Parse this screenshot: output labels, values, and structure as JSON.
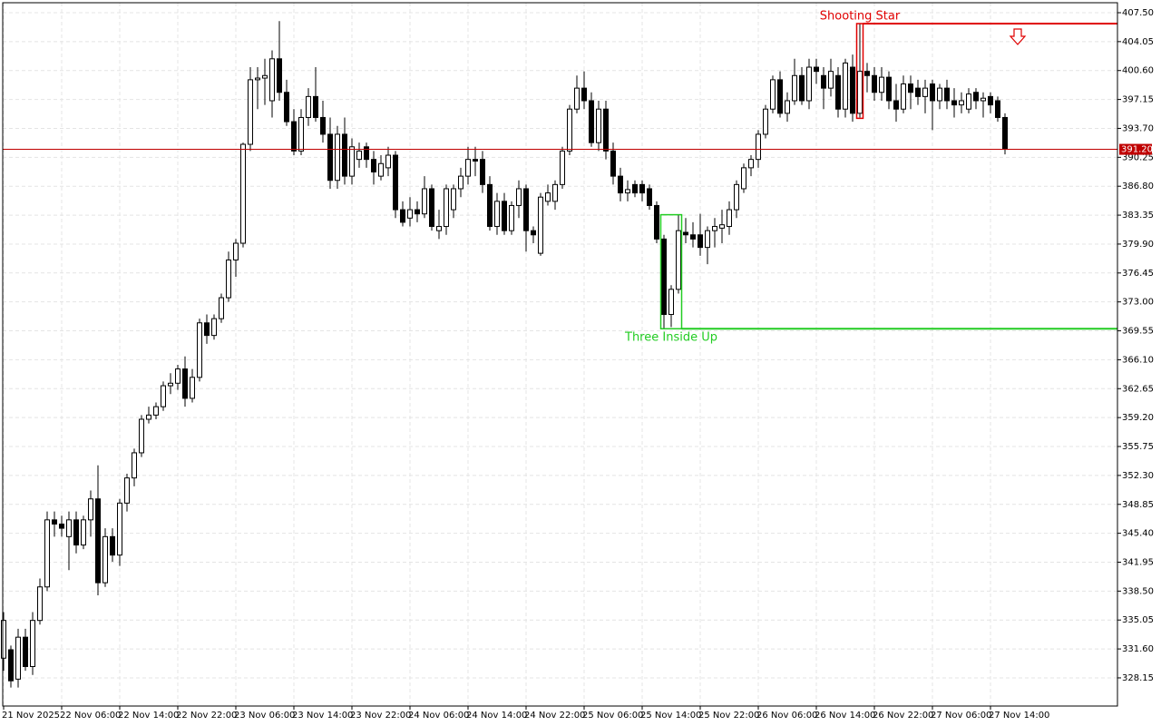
{
  "chart_data": {
    "type": "candlestick",
    "categories": [
      "21 Nov 2025",
      null,
      null,
      null,
      null,
      null,
      null,
      null,
      "22 Nov 06:00",
      null,
      null,
      null,
      null,
      null,
      null,
      null,
      "22 Nov 14:00",
      null,
      null,
      null,
      null,
      null,
      null,
      null,
      "22 Nov 22:00",
      null,
      null,
      null,
      null,
      null,
      null,
      null,
      "23 Nov 06:00",
      null,
      null,
      null,
      null,
      null,
      null,
      null,
      "23 Nov 14:00",
      null,
      null,
      null,
      null,
      null,
      null,
      null,
      "23 Nov 22:00",
      null,
      null,
      null,
      null,
      null,
      null,
      null,
      "24 Nov 06:00",
      null,
      null,
      null,
      null,
      null,
      null,
      null,
      "24 Nov 14:00",
      null,
      null,
      null,
      null,
      null,
      null,
      null,
      "24 Nov 22:00",
      null,
      null,
      null,
      null,
      null,
      null,
      null,
      "25 Nov 06:00",
      null,
      null,
      null,
      null,
      null,
      null,
      null,
      "25 Nov 14:00",
      null,
      null,
      null,
      null,
      null,
      null,
      null,
      "25 Nov 22:00",
      null,
      null,
      null,
      null,
      null,
      null,
      null,
      "26 Nov 06:00",
      null,
      null,
      null,
      null,
      null,
      null,
      null,
      "26 Nov 14:00",
      null,
      null,
      null,
      null,
      null,
      null,
      null,
      "26 Nov 22:00",
      null,
      null,
      null,
      null,
      null,
      null,
      null,
      "27 Nov 06:00",
      null,
      null,
      null,
      null,
      null,
      null,
      null,
      "27 Nov 14:00",
      null,
      null
    ],
    "open": [
      330.5,
      331.5,
      328,
      333,
      329.5,
      335,
      339,
      347,
      346.5,
      345,
      347,
      344,
      347,
      349.5,
      339.5,
      345,
      342.8,
      349,
      352,
      355,
      359,
      359.5,
      360.5,
      363,
      363.3,
      365,
      361.5,
      364,
      370.5,
      369,
      371,
      373.5,
      378,
      380,
      391.8,
      399.5,
      399.7,
      397,
      402,
      398,
      394.5,
      391,
      395,
      397.5,
      395,
      393,
      387.5,
      393,
      388,
      390,
      391.5,
      390,
      388,
      389,
      390.5,
      384,
      383,
      384,
      383.5,
      386.5,
      381.5,
      382,
      384,
      386.5,
      388,
      390,
      390,
      387,
      382,
      385,
      381.5,
      384.5,
      386.5,
      381.5,
      378.8,
      385,
      385,
      387,
      391,
      396,
      398.5,
      397,
      392,
      396,
      391,
      388,
      386,
      387,
      387,
      386.5,
      384.5,
      380.5,
      371.5,
      374.5,
      381.3,
      381,
      381,
      379.5,
      381.5,
      381.8,
      382,
      384,
      386.5,
      389,
      390,
      393,
      396,
      399.5,
      395.5,
      397,
      400,
      397,
      401,
      400,
      398.5,
      400,
      396,
      401,
      395.5,
      400.5,
      400,
      398,
      399.8,
      397,
      396,
      399,
      398.5,
      397.5,
      399,
      397,
      398.5,
      397,
      396.5,
      396,
      398,
      397,
      397.5,
      397,
      395
    ],
    "high": [
      336,
      332,
      334,
      334,
      336,
      340,
      348,
      348,
      347.5,
      348,
      348,
      347.5,
      350.5,
      353.5,
      346,
      346,
      349.5,
      352.5,
      355.5,
      359.5,
      360.5,
      361,
      363.5,
      364.5,
      365.5,
      366.5,
      365,
      371,
      371.5,
      371.5,
      374,
      379,
      380.5,
      392,
      401,
      401,
      402,
      403,
      406.5,
      399.5,
      396,
      396,
      398.5,
      401,
      397,
      395,
      394,
      395,
      392.5,
      392,
      392,
      391,
      390.5,
      391.5,
      391,
      385,
      385.5,
      385,
      388,
      387,
      384,
      387,
      387,
      389,
      391.5,
      391.5,
      391,
      388,
      386,
      386,
      385,
      387.5,
      387,
      382,
      386,
      387,
      387.5,
      391.5,
      396.5,
      400,
      400.5,
      398,
      397,
      397,
      392,
      389,
      387.5,
      387.5,
      387.5,
      387,
      385,
      381,
      375,
      383.4,
      383,
      382.5,
      383.5,
      382,
      383,
      384,
      385,
      387.5,
      389.5,
      390.5,
      393.5,
      396.5,
      400,
      400.5,
      398,
      402,
      401,
      402,
      402,
      401,
      402,
      401,
      402,
      402.5,
      406.2,
      401.5,
      401,
      401,
      400.5,
      399,
      400,
      400,
      399.5,
      399.5,
      399.5,
      399,
      399.5,
      398.5,
      398,
      398.5,
      398.5,
      398,
      398,
      397.5,
      395.5
    ],
    "low": [
      329,
      327,
      327,
      329,
      328.5,
      334.5,
      338.5,
      345,
      345,
      341,
      343,
      343.5,
      345,
      338,
      339,
      342,
      341.5,
      348,
      351,
      354.5,
      358.5,
      359,
      360,
      362,
      362.5,
      360.5,
      361,
      363.5,
      368,
      368.5,
      370.5,
      373,
      376,
      379.5,
      391,
      396,
      396.5,
      395,
      397,
      394,
      390.5,
      390.5,
      394,
      394.5,
      392,
      386.5,
      386.5,
      387,
      387,
      389,
      389,
      387,
      387.5,
      388,
      383,
      382,
      382,
      382.5,
      383,
      381.5,
      380.5,
      381,
      383,
      385.5,
      387,
      388,
      386,
      381.5,
      381,
      381,
      381,
      383,
      379,
      380,
      378.5,
      384.5,
      384,
      386.5,
      390.5,
      395.5,
      396,
      391.5,
      391,
      390,
      387,
      385,
      385,
      385.5,
      385,
      384,
      380,
      369.8,
      370,
      374,
      380,
      379.5,
      378.5,
      377.5,
      379.5,
      380,
      381,
      383,
      386,
      388,
      389,
      392.5,
      395.5,
      395,
      394.5,
      396.5,
      396.5,
      396,
      399,
      396,
      397.5,
      395,
      395,
      394.5,
      395,
      398,
      397,
      397,
      396,
      394.5,
      395.5,
      396,
      396.5,
      395.5,
      393.5,
      396,
      396,
      395,
      395.5,
      395.5,
      396,
      395,
      395.5,
      394.5,
      390.6
    ],
    "close": [
      335,
      327.8,
      333,
      329.5,
      335,
      339,
      347,
      346.5,
      346,
      347,
      344,
      347,
      349.5,
      339.5,
      345,
      342.8,
      349,
      352,
      355,
      359,
      359.5,
      360.5,
      363,
      363.3,
      365,
      361.5,
      364,
      370.5,
      369,
      371,
      373.5,
      378,
      380,
      391.8,
      399.5,
      399.7,
      400,
      402,
      398,
      394.5,
      391,
      395,
      397.5,
      395,
      393,
      387.5,
      393,
      388,
      391.5,
      391,
      390,
      388.5,
      389.5,
      390.5,
      384,
      382.5,
      384,
      383.5,
      386.5,
      382,
      382,
      386.5,
      386.5,
      388,
      390,
      389.8,
      387,
      382,
      385,
      381.5,
      384.5,
      386.5,
      381.5,
      381,
      385.5,
      386,
      387,
      391,
      396,
      398.5,
      397,
      392,
      396,
      391,
      388,
      386,
      386.4,
      386,
      386,
      384.5,
      380.5,
      371.5,
      374.5,
      381.5,
      381,
      380.5,
      379.5,
      381.5,
      382,
      382.2,
      384,
      387,
      389,
      390,
      393,
      396,
      399.5,
      395.5,
      397,
      400,
      397,
      401,
      400.5,
      398.5,
      400.5,
      396,
      401.5,
      395.5,
      400.5,
      400,
      398,
      399.8,
      397,
      396,
      399,
      398,
      397.5,
      398.5,
      397,
      398.5,
      397,
      396.5,
      397,
      397.8,
      397,
      397.3,
      396.5,
      395,
      391.2
    ],
    "ylim": [
      324.79,
      408.69
    ],
    "yticks": [
      {
        "value": 407.5,
        "label": "407.50"
      },
      404.05,
      {
        "value": 400.6,
        "label": "400.60"
      },
      397.15,
      {
        "value": 393.7,
        "label": "393.70"
      },
      390.25,
      {
        "value": 386.8,
        "label": "386.80"
      },
      383.35,
      {
        "value": 379.9,
        "label": "379.90"
      },
      376.45,
      {
        "value": 373,
        "label": "373.00"
      },
      369.55,
      {
        "value": 366.1,
        "label": "366.10"
      },
      362.65,
      {
        "value": 359.2,
        "label": "359.20"
      },
      355.75,
      {
        "value": 352.3,
        "label": "352.30"
      },
      348.85,
      {
        "value": 345.4,
        "label": "345.40"
      },
      341.95,
      {
        "value": 338.5,
        "label": "338.50"
      },
      335.05,
      {
        "value": 331.6,
        "label": "331.60"
      },
      328.15
    ],
    "grid": true,
    "up_color": "#ffffff",
    "down_color": "#000000",
    "price_line": {
      "value": 391.2,
      "label": "391.20",
      "color": "#c00000"
    },
    "patterns": [
      {
        "label": "Shooting Star",
        "color": "#e00000",
        "first_candle": 118,
        "last_candle": 118,
        "top": 406.2,
        "bottom": 394.9,
        "level": 406.2
      },
      {
        "label": "Three Inside Up",
        "color": "#22cc22",
        "first_candle": 91,
        "last_candle": 93,
        "top": 383.4,
        "bottom": 369.8,
        "level": 369.8
      }
    ]
  }
}
